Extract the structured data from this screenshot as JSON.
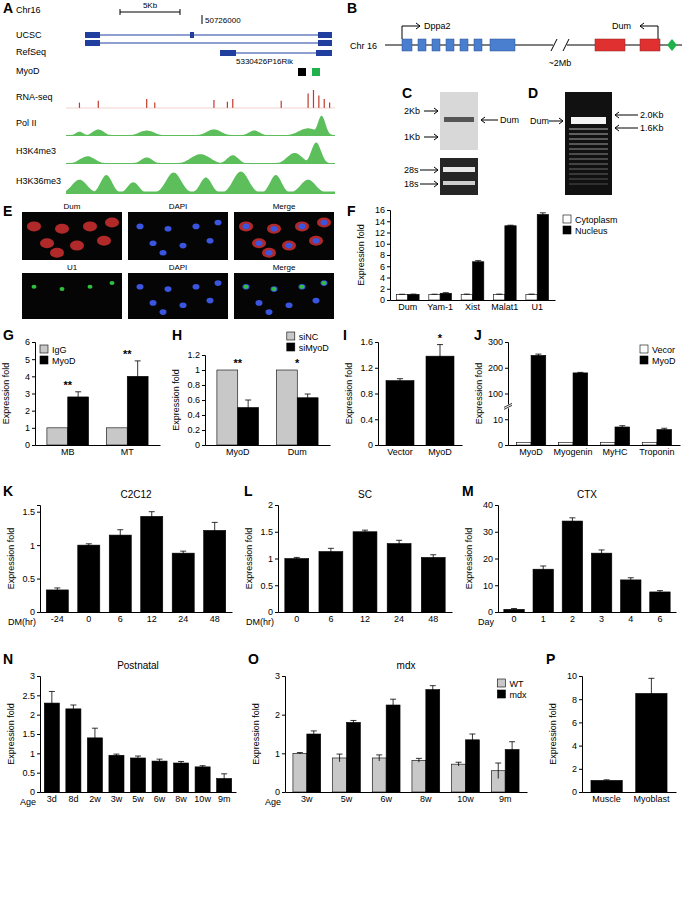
{
  "figure": {
    "panel_labels": [
      "A",
      "B",
      "C",
      "D",
      "E",
      "F",
      "G",
      "H",
      "I",
      "J",
      "K",
      "L",
      "M",
      "N",
      "O",
      "P"
    ],
    "A": {
      "chromosome": "Chr16",
      "scale": "5Kb",
      "coordinate": "50726000",
      "tracks": [
        "UCSC",
        "RefSeq",
        "MyoD",
        "RNA-seq",
        "Pol II",
        "H3K4me3",
        "H3K36me3"
      ],
      "gene": "5330426P16Rik"
    },
    "B": {
      "chromosome": "Chr 16",
      "genes": [
        "Dppa2",
        "Dum"
      ],
      "distance": "~2Mb"
    },
    "C": {
      "markers": [
        "2Kb",
        "1Kb"
      ],
      "band": "Dum",
      "rrna": [
        "28s",
        "18s"
      ]
    },
    "D": {
      "band": "Dum",
      "sizes": [
        "2.0Kb",
        "1.6Kb"
      ]
    },
    "E": {
      "rows": [
        [
          "Dum",
          "DAPI",
          "Merge"
        ],
        [
          "U1",
          "DAPI",
          "Merge"
        ]
      ]
    }
  },
  "chart_data": [
    {
      "type": "bar",
      "y_label": "Expression fold",
      "categories": [
        "Dum",
        "Yam-1",
        "Xist",
        "Malat1",
        "U1"
      ],
      "series": [
        {
          "name": "Cytoplasm",
          "color": "#ffffff",
          "values": [
            1,
            1,
            1,
            1,
            1
          ],
          "errors": [
            0.02,
            0.03,
            0.05,
            0.05,
            0.05
          ]
        },
        {
          "name": "Nucleus",
          "color": "#000000",
          "values": [
            1.0,
            1.2,
            6.8,
            13.2,
            15.2
          ],
          "errors": [
            0.05,
            0.1,
            0.2,
            0.1,
            0.3
          ]
        }
      ],
      "ylim": [
        0,
        16
      ],
      "yticks": [
        0,
        2,
        4,
        6,
        8,
        10,
        12,
        14,
        16
      ],
      "legend": "right"
    },
    {
      "type": "bar",
      "y_label": "Expression fold",
      "categories": [
        "MB",
        "MT"
      ],
      "series": [
        {
          "name": "IgG",
          "color": "#c8c8c8",
          "values": [
            1,
            1
          ]
        },
        {
          "name": "MyoD",
          "color": "#000000",
          "values": [
            2.8,
            4.0
          ],
          "errors": [
            0.3,
            0.9
          ]
        }
      ],
      "ylim": [
        0,
        6
      ],
      "yticks": [
        0,
        1,
        2,
        3,
        4,
        5,
        6
      ],
      "legend": "top-left",
      "annotations": [
        {
          "category": 0,
          "text": "**"
        },
        {
          "category": 1,
          "text": "**"
        }
      ]
    },
    {
      "type": "bar",
      "y_label": "Expression fold",
      "categories": [
        "MyoD",
        "Dum"
      ],
      "series": [
        {
          "name": "siNC",
          "color": "#c8c8c8",
          "values": [
            1,
            1
          ]
        },
        {
          "name": "siMyoD",
          "color": "#000000",
          "values": [
            0.5,
            0.63
          ],
          "errors": [
            0.1,
            0.05
          ]
        }
      ],
      "ylim": [
        0,
        1.2
      ],
      "yticks": [
        0,
        0.2,
        0.4,
        0.6,
        0.8,
        1,
        1.2
      ],
      "legend": "top",
      "annotations": [
        {
          "category": 0,
          "text": "**"
        },
        {
          "category": 1,
          "text": "*"
        }
      ]
    },
    {
      "type": "bar",
      "y_label": "Expression fold",
      "categories": [
        "Vector",
        "MyoD"
      ],
      "series": [
        {
          "color": "#000000",
          "values": [
            1.0,
            1.38
          ],
          "errors": [
            0.03,
            0.18
          ]
        }
      ],
      "ylim": [
        0,
        1.6
      ],
      "yticks": [
        0,
        0.4,
        0.8,
        1.2,
        1.6
      ],
      "annotations": [
        {
          "category": 1,
          "text": "*"
        }
      ]
    },
    {
      "type": "bar",
      "y_label": "Expression fold",
      "categories": [
        "MyoD",
        "Myogenin",
        "MyHC",
        "Troponin"
      ],
      "series": [
        {
          "name": "Vecor",
          "color": "#ffffff",
          "values": [
            1,
            1,
            1,
            1
          ]
        },
        {
          "name": "MyoD",
          "color": "#000000",
          "values": [
            248,
            180,
            7,
            6
          ],
          "errors": [
            5,
            2,
            0.5,
            0.5
          ]
        }
      ],
      "ylim": [
        0,
        300
      ],
      "yticks": [
        0,
        10,
        100,
        200,
        300
      ],
      "legend": "top-right"
    },
    {
      "type": "bar",
      "title": "C2C12",
      "y_label": "Expression fold",
      "x_label": "DM(hr)",
      "categories": [
        "-24",
        "0",
        "6",
        "12",
        "24",
        "48"
      ],
      "series": [
        {
          "color": "#000000",
          "values": [
            0.33,
            1.0,
            1.15,
            1.43,
            0.88,
            1.22
          ],
          "errors": [
            0.03,
            0.02,
            0.08,
            0.07,
            0.03,
            0.12
          ]
        }
      ],
      "ylim": [
        0,
        1.6
      ],
      "yticks": [
        0,
        0.5,
        1,
        1.5
      ]
    },
    {
      "type": "bar",
      "title": "SC",
      "y_label": "Expression fold",
      "x_label": "DM(hr)",
      "categories": [
        "0",
        "6",
        "12",
        "24",
        "48"
      ],
      "series": [
        {
          "color": "#000000",
          "values": [
            1.0,
            1.13,
            1.5,
            1.28,
            1.02
          ],
          "errors": [
            0.02,
            0.06,
            0.03,
            0.06,
            0.05
          ]
        }
      ],
      "ylim": [
        0,
        2
      ],
      "yticks": [
        0,
        0.5,
        1,
        1.5,
        2
      ]
    },
    {
      "type": "bar",
      "title": "CTX",
      "y_label": "Expression fold",
      "x_label": "Day",
      "categories": [
        "0",
        "1",
        "2",
        "3",
        "4",
        "6"
      ],
      "series": [
        {
          "color": "#000000",
          "values": [
            1,
            16,
            34,
            22,
            12,
            7.5
          ],
          "errors": [
            0.3,
            1.2,
            1.2,
            1.2,
            0.8,
            0.5
          ]
        }
      ],
      "ylim": [
        0,
        40
      ],
      "yticks": [
        0,
        10,
        20,
        30,
        40
      ]
    },
    {
      "type": "bar",
      "title": "Postnatal",
      "y_label": "Expression fold",
      "x_label": "Age",
      "categories": [
        "3d",
        "8d",
        "2w",
        "3w",
        "5w",
        "6w",
        "8w",
        "10w",
        "9m"
      ],
      "series": [
        {
          "color": "#000000",
          "values": [
            2.3,
            2.15,
            1.4,
            0.95,
            0.88,
            0.8,
            0.75,
            0.65,
            0.35
          ],
          "errors": [
            0.3,
            0.1,
            0.25,
            0.03,
            0.05,
            0.05,
            0.04,
            0.03,
            0.12
          ]
        }
      ],
      "ylim": [
        0,
        3
      ],
      "yticks": [
        0,
        0.5,
        1,
        1.5,
        2,
        2.5,
        3
      ]
    },
    {
      "type": "bar",
      "title": "mdx",
      "y_label": "Expression fold",
      "x_label": "Age",
      "categories": [
        "3w",
        "5w",
        "6w",
        "8w",
        "10w",
        "9m"
      ],
      "series": [
        {
          "name": "WT",
          "color": "#c8c8c8",
          "values": [
            1.0,
            0.88,
            0.88,
            0.82,
            0.72,
            0.55
          ],
          "errors": [
            0.02,
            0.1,
            0.08,
            0.05,
            0.05,
            0.2
          ]
        },
        {
          "name": "mdx",
          "color": "#000000",
          "values": [
            1.5,
            1.8,
            2.25,
            2.65,
            1.35,
            1.1
          ],
          "errors": [
            0.08,
            0.05,
            0.15,
            0.1,
            0.15,
            0.2
          ]
        }
      ],
      "ylim": [
        0,
        3
      ],
      "yticks": [
        0,
        1,
        2,
        3
      ],
      "legend": "top-right"
    },
    {
      "type": "bar",
      "y_label": "Expression fold",
      "categories": [
        "Muscle",
        "Myoblast"
      ],
      "series": [
        {
          "color": "#000000",
          "values": [
            1,
            8.5
          ],
          "errors": [
            0.05,
            1.3
          ]
        }
      ],
      "ylim": [
        0,
        10
      ],
      "yticks": [
        0,
        2,
        4,
        6,
        8,
        10
      ]
    }
  ]
}
